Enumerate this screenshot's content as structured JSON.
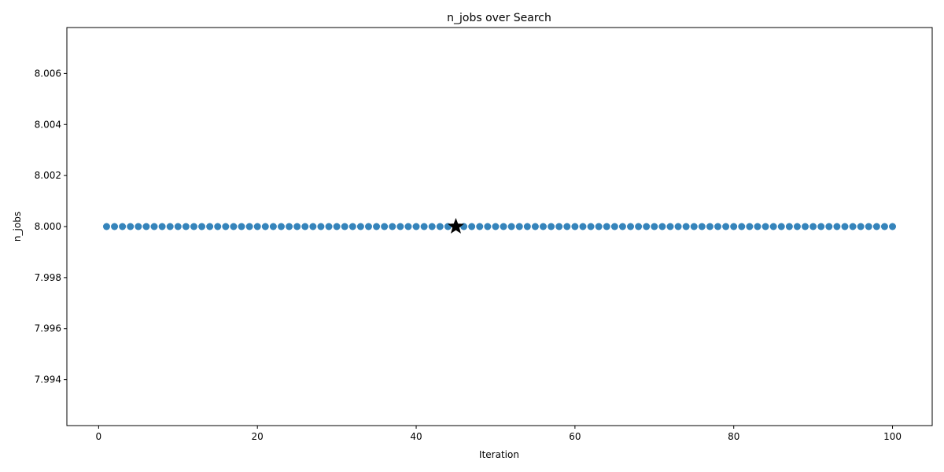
{
  "chart_data": {
    "type": "scatter",
    "title": "n_jobs over Search",
    "xlabel": "Iteration",
    "ylabel": "n_jobs",
    "xlim": [
      -4,
      105
    ],
    "ylim": [
      7.9922,
      8.0078
    ],
    "xticks": [
      0,
      20,
      40,
      60,
      80,
      100
    ],
    "yticks": [
      7.994,
      7.996,
      7.998,
      8.0,
      8.002,
      8.004,
      8.006
    ],
    "xtick_labels": [
      "0",
      "20",
      "40",
      "60",
      "80",
      "100"
    ],
    "ytick_labels": [
      "7.994",
      "7.996",
      "7.998",
      "8.000",
      "8.002",
      "8.004",
      "8.006"
    ],
    "grid": false,
    "series": [
      {
        "x_start": 1,
        "x_end": 100,
        "y_constant": 8.0,
        "color": "#1f77b4"
      }
    ],
    "best_point": {
      "x": 45,
      "y": 8.0,
      "marker": "star",
      "color": "#000000"
    }
  }
}
